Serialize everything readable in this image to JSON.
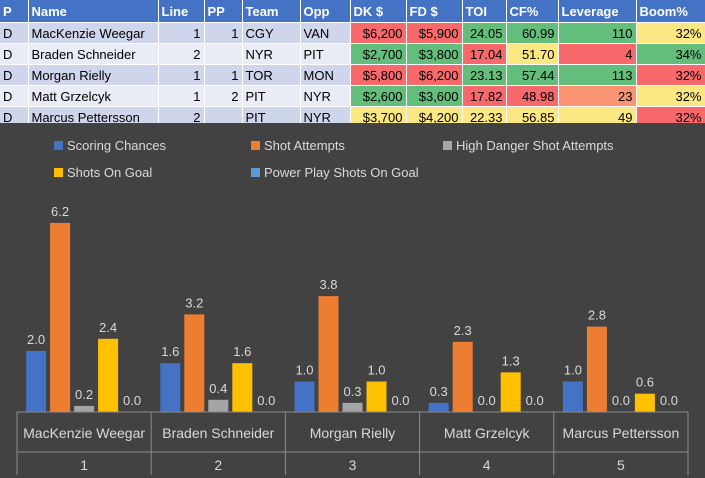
{
  "table": {
    "columns": [
      "P",
      "Name",
      "Line",
      "PP",
      "Team",
      "Opp",
      "DK $",
      "FD $",
      "TOI",
      "CF%",
      "Leverage",
      "Boom%"
    ],
    "rows": [
      {
        "cells": [
          "D",
          "MacKenzie Weegar",
          "1",
          "1",
          "CGY",
          "VAN",
          "$6,200",
          "$5,900",
          "24.05",
          "60.99",
          "110",
          "32%"
        ],
        "colors": {
          "DK $": "#f8696b",
          "FD $": "#f8696b",
          "TOI": "#63be7b",
          "CF%": "#63be7b",
          "Leverage": "#63be7b",
          "Boom%": "#fbe883"
        }
      },
      {
        "cells": [
          "D",
          "Braden Schneider",
          "2",
          "",
          "NYR",
          "PIT",
          "$2,700",
          "$3,800",
          "17.04",
          "51.70",
          "4",
          "34%"
        ],
        "colors": {
          "DK $": "#63be7b",
          "FD $": "#63be7b",
          "TOI": "#f8696b",
          "CF%": "#fbe883",
          "Leverage": "#f8696b",
          "Boom%": "#63be7b"
        }
      },
      {
        "cells": [
          "D",
          "Morgan Rielly",
          "1",
          "1",
          "TOR",
          "MON",
          "$5,800",
          "$6,200",
          "23.13",
          "57.44",
          "113",
          "32%"
        ],
        "colors": {
          "DK $": "#f8696b",
          "FD $": "#f8696b",
          "TOI": "#63be7b",
          "CF%": "#63be7b",
          "Leverage": "#63be7b",
          "Boom%": "#f8696b"
        }
      },
      {
        "cells": [
          "D",
          "Matt Grzelcyk",
          "1",
          "2",
          "PIT",
          "NYR",
          "$2,600",
          "$3,600",
          "17.82",
          "48.98",
          "23",
          "32%"
        ],
        "colors": {
          "DK $": "#63be7b",
          "FD $": "#63be7b",
          "TOI": "#f8696b",
          "CF%": "#f8696b",
          "Leverage": "#fa9473",
          "Boom%": "#fbe883"
        }
      },
      {
        "cells": [
          "D",
          "Marcus Pettersson",
          "2",
          "",
          "PIT",
          "NYR",
          "$3,700",
          "$4,200",
          "22.33",
          "56.85",
          "49",
          "32%"
        ],
        "colors": {
          "DK $": "#fbe883",
          "FD $": "#fbe883",
          "TOI": "#fbe883",
          "CF%": "#fbe883",
          "Leverage": "#fbe883",
          "Boom%": "#f8696b"
        }
      }
    ]
  },
  "chart_data": {
    "type": "bar",
    "title": "",
    "xlabel": "",
    "ylabel": "",
    "ylim": [
      0,
      7
    ],
    "grid": false,
    "legend_position": "top",
    "categories": [
      "MacKenzie Weegar",
      "Braden Schneider",
      "Morgan Rielly",
      "Matt Grzelcyk",
      "Marcus Pettersson"
    ],
    "category_groups": [
      "1",
      "2",
      "3",
      "4",
      "5"
    ],
    "series": [
      {
        "name": "Scoring Chances",
        "color": "#4472c4",
        "values": [
          2.0,
          1.6,
          1.0,
          0.3,
          1.0
        ]
      },
      {
        "name": "Shot Attempts",
        "color": "#ed7d31",
        "values": [
          6.2,
          3.2,
          3.8,
          2.3,
          2.8
        ]
      },
      {
        "name": "High Danger Shot Attempts",
        "color": "#a5a5a5",
        "values": [
          0.2,
          0.4,
          0.3,
          0.0,
          0.0
        ]
      },
      {
        "name": "Shots On Goal",
        "color": "#ffc000",
        "values": [
          2.4,
          1.6,
          1.0,
          1.3,
          0.6
        ]
      },
      {
        "name": "Power Play Shots On Goal",
        "color": "#5b9bd5",
        "values": [
          0.0,
          0.0,
          0.0,
          0.0,
          0.0
        ]
      }
    ],
    "data_labels": [
      [
        "2.0",
        "1.6",
        "1.0",
        "0.3",
        "1.0"
      ],
      [
        "6.2",
        "3.2",
        "3.8",
        "2.3",
        "2.8"
      ],
      [
        "0.2",
        "0.4",
        "0.3",
        "0.0",
        "0.0"
      ],
      [
        "2.4",
        "1.6",
        "1.0",
        "1.3",
        "0.6"
      ],
      [
        "0.0",
        "0.0",
        "0.0",
        "0.0",
        "0.0"
      ]
    ]
  }
}
